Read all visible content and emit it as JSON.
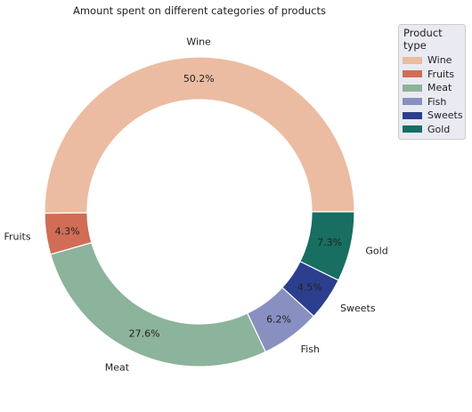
{
  "chart_data": {
    "type": "pie",
    "style": "donut",
    "title": "Amount spent on different categories of products",
    "categories": [
      "Wine",
      "Fruits",
      "Meat",
      "Fish",
      "Sweets",
      "Gold"
    ],
    "values": [
      50.2,
      4.3,
      27.6,
      6.2,
      4.5,
      7.3
    ],
    "value_labels": [
      "50.2%",
      "4.3%",
      "27.6%",
      "6.2%",
      "4.5%",
      "7.3%"
    ],
    "colors": [
      "#ebbca1",
      "#d16d56",
      "#8cb39b",
      "#8890c2",
      "#2c3f8e",
      "#176e61"
    ],
    "start_angle_deg": 0,
    "direction": "counterclockwise",
    "legend": {
      "title": "Product type",
      "placement": "upper-right-outside"
    }
  }
}
